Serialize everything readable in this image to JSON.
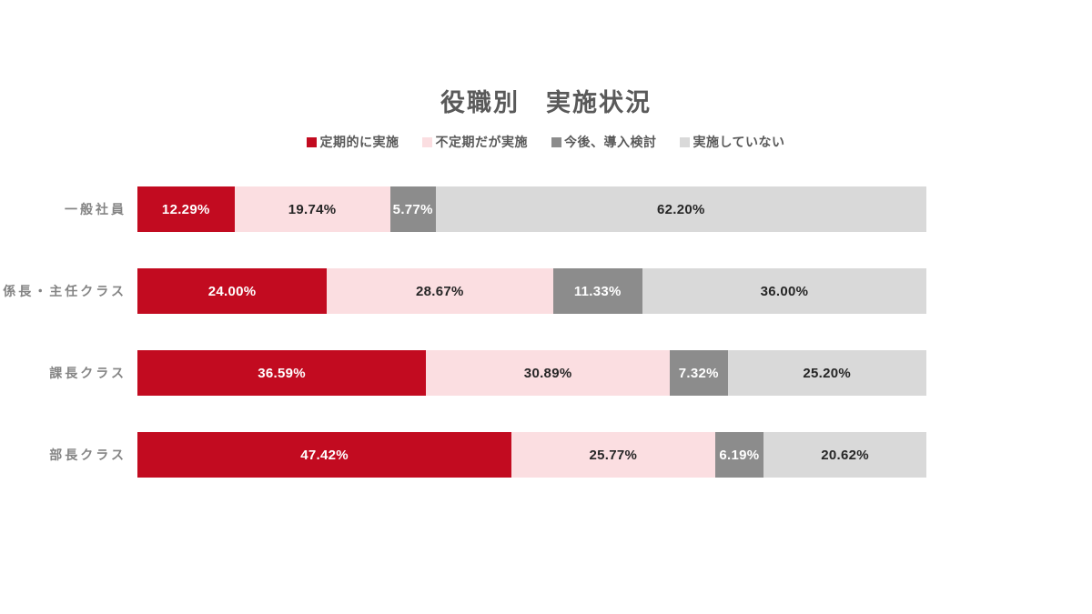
{
  "page": {
    "background": "#ffffff"
  },
  "styles": {
    "title_color": "#595959",
    "legend_text_color": "#595959",
    "category_label_color": "#848484",
    "dark_value_label_color": "#262626",
    "light_value_label_color": "#ffffff"
  },
  "chart_data": {
    "type": "bar",
    "orientation": "horizontal",
    "stacked": true,
    "title": "役職別　実施状況",
    "xlabel": "",
    "ylabel": "",
    "unit": "%",
    "x_range": [
      0,
      100
    ],
    "grid": false,
    "legend_position": "top-center",
    "value_label_format": "two-decimal-percent",
    "categories": [
      "一般社員",
      "係長・主任クラス",
      "課長クラス",
      "部長クラス"
    ],
    "series": [
      {
        "name": "定期的に実施",
        "color": "#c20b20",
        "label_color": "#ffffff",
        "values": [
          12.29,
          24.0,
          36.59,
          47.42
        ]
      },
      {
        "name": "不定期だが実施",
        "color": "#fbdee1",
        "label_color": "#262626",
        "values": [
          19.74,
          28.67,
          30.89,
          25.77
        ]
      },
      {
        "name": "今後、導入検討",
        "color": "#8c8c8c",
        "label_color": "#ffffff",
        "values": [
          5.77,
          11.33,
          7.32,
          6.19
        ]
      },
      {
        "name": "実施していない",
        "color": "#d9d9d9",
        "label_color": "#262626",
        "values": [
          62.2,
          36.0,
          25.2,
          20.62
        ]
      }
    ]
  }
}
